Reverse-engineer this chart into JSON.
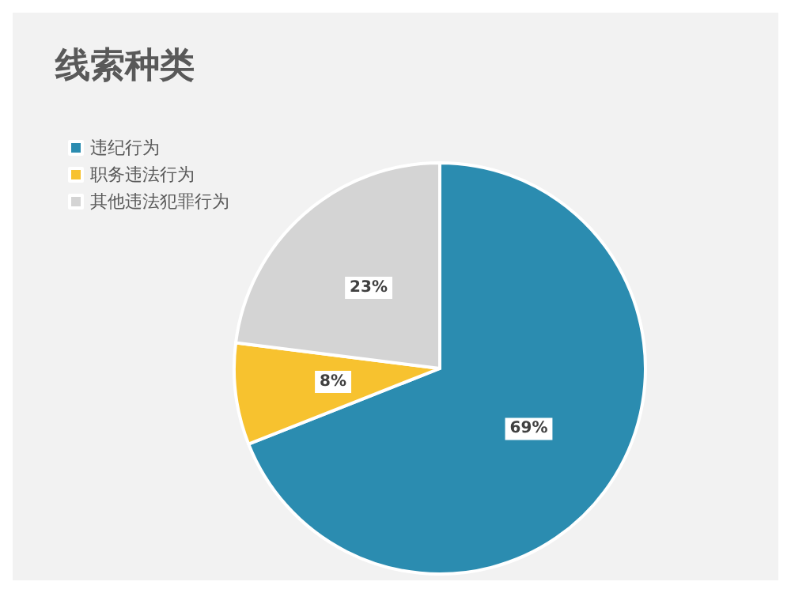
{
  "chart_data": {
    "type": "pie",
    "title": "线索种类",
    "categories": [
      "违纪行为",
      "职务违法行为",
      "其他违法犯罪行为"
    ],
    "values": [
      69,
      8,
      23
    ],
    "colors": [
      "#2b8cb0",
      "#f7c22f",
      "#d4d4d4"
    ],
    "value_labels": [
      "69%",
      "8%",
      "23%"
    ],
    "legend": "top left"
  }
}
